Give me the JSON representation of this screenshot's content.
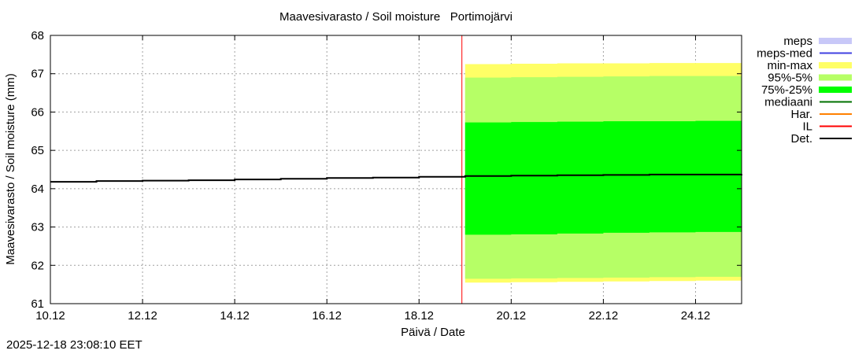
{
  "chart_data": {
    "type": "area",
    "title": "Maavesivarasto / Soil moisture   Portimojärvi",
    "xlabel": "Päivä / Date",
    "ylabel": "Maavesivarasto / Soil moisture (mm)",
    "ylim": [
      61,
      68
    ],
    "yticks": [
      "61",
      "62",
      "63",
      "64",
      "65",
      "66",
      "67",
      "68"
    ],
    "xlim_days": [
      0,
      15
    ],
    "xticks": [
      "10.12",
      "12.12",
      "14.12",
      "16.12",
      "18.12",
      "20.12",
      "22.12",
      "24.12"
    ],
    "grid": true,
    "forecast_start_day": 8.93,
    "legend": [
      {
        "label": "meps",
        "color": "#c8c8f8",
        "kind": "band"
      },
      {
        "label": "meps-med",
        "color": "#4040e0",
        "kind": "line"
      },
      {
        "label": "min-max",
        "color": "#ffff66",
        "kind": "band"
      },
      {
        "label": "95%-5%",
        "color": "#b6ff66",
        "kind": "band"
      },
      {
        "label": "75%-25%",
        "color": "#00ff00",
        "kind": "band"
      },
      {
        "label": "mediaani",
        "color": "#007000",
        "kind": "line"
      },
      {
        "label": "Har.",
        "color": "#ff8000",
        "kind": "line"
      },
      {
        "label": "IL",
        "color": "#ff0000",
        "kind": "line"
      },
      {
        "label": "Det.",
        "color": "#000000",
        "kind": "line"
      }
    ],
    "band_x": [
      9.0,
      10.0,
      11.0,
      12.0,
      13.0,
      14.0,
      15.0
    ],
    "bands": [
      {
        "name": "min-max",
        "color": "#ffff66",
        "upper": [
          67.25,
          67.26,
          67.27,
          67.27,
          67.28,
          67.28,
          67.29
        ],
        "lower": [
          61.55,
          61.56,
          61.57,
          61.58,
          61.59,
          61.6,
          61.6
        ]
      },
      {
        "name": "95%-5%",
        "color": "#b6ff66",
        "upper": [
          66.9,
          66.91,
          66.92,
          66.93,
          66.94,
          66.94,
          66.95
        ],
        "lower": [
          61.65,
          61.66,
          61.67,
          61.68,
          61.69,
          61.7,
          61.7
        ]
      },
      {
        "name": "75%-25%",
        "color": "#00ff00",
        "upper": [
          65.73,
          65.74,
          65.75,
          65.76,
          65.76,
          65.77,
          65.78
        ],
        "lower": [
          62.8,
          62.81,
          62.83,
          62.85,
          62.86,
          62.87,
          62.87
        ]
      }
    ],
    "det": {
      "x": [
        0,
        1,
        2,
        3,
        4,
        5,
        6,
        7,
        8,
        9,
        10,
        11,
        12,
        13,
        14,
        15
      ],
      "y": [
        64.18,
        64.2,
        64.21,
        64.22,
        64.24,
        64.26,
        64.28,
        64.29,
        64.31,
        64.33,
        64.34,
        64.35,
        64.36,
        64.37,
        64.37,
        64.38
      ]
    }
  },
  "timestamp": "2025-12-18 23:08:10 EET"
}
